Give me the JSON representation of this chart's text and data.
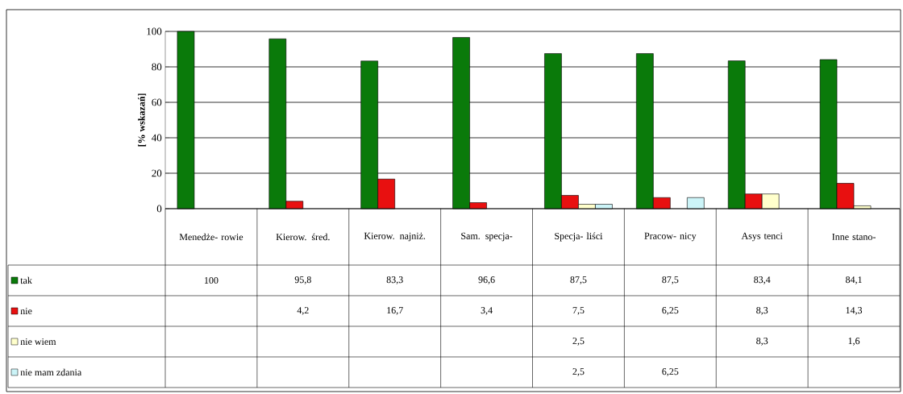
{
  "chart_data": {
    "type": "bar",
    "ylabel": "[% wskazań]",
    "categories": [
      "Menedże- rowie",
      "Kierow. śred.",
      "Kierow. najniż.",
      "Sam. specja-",
      "Specja- liści",
      "Pracow- nicy",
      "Asys tenci",
      "Inne stano-"
    ],
    "series": [
      {
        "name": "tak",
        "color": "#0a7a0a",
        "values": [
          100,
          95.8,
          83.3,
          96.6,
          87.5,
          87.5,
          83.4,
          84.1
        ],
        "value_labels": [
          "100",
          "95,8",
          "83,3",
          "96,6",
          "87,5",
          "87,5",
          "83,4",
          "84,1"
        ]
      },
      {
        "name": "nie",
        "color": "#e81010",
        "values": [
          null,
          4.2,
          16.7,
          3.4,
          7.5,
          6.25,
          8.3,
          14.3
        ],
        "value_labels": [
          null,
          "4,2",
          "16,7",
          "3,4",
          "7,5",
          "6,25",
          "8,3",
          "14,3"
        ]
      },
      {
        "name": "nie wiem",
        "color": "#ffffcc",
        "values": [
          null,
          null,
          null,
          null,
          2.5,
          null,
          8.3,
          1.6
        ],
        "value_labels": [
          null,
          null,
          null,
          null,
          "2,5",
          null,
          "8,3",
          "1,6"
        ]
      },
      {
        "name": "nie mam zdania",
        "color": "#ccf4f8",
        "values": [
          null,
          null,
          null,
          null,
          2.5,
          6.25,
          null,
          null
        ],
        "value_labels": [
          null,
          null,
          null,
          null,
          "2,5",
          "6,25",
          null,
          null
        ]
      }
    ],
    "ylim": [
      0,
      100
    ],
    "yticks": [
      0,
      20,
      40,
      60,
      80,
      100
    ],
    "grid": "y",
    "legend": "bottom left"
  }
}
